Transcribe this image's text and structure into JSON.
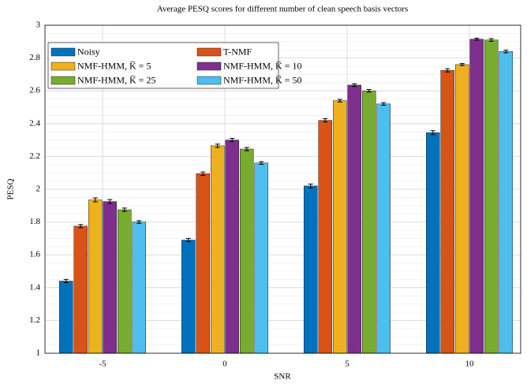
{
  "chart_data": {
    "type": "bar",
    "title": "Average PESQ scores for different number of clean speech basis vectors",
    "x_label": "SNR",
    "y_label": "PESQ",
    "categories": [
      "-5",
      "0",
      "5",
      "10"
    ],
    "series": [
      {
        "name": "Noisy",
        "color": "#0072bd",
        "values": [
          1.44,
          1.69,
          2.02,
          2.345
        ],
        "errors": [
          0.01,
          0.01,
          0.012,
          0.012
        ]
      },
      {
        "name": "T-NMF",
        "color": "#d95319",
        "values": [
          1.775,
          2.095,
          2.42,
          2.725
        ],
        "errors": [
          0.01,
          0.01,
          0.01,
          0.01
        ]
      },
      {
        "name": "NMF-HMM, K̅ = 5",
        "color": "#edb120",
        "values": [
          1.935,
          2.265,
          2.54,
          2.76
        ],
        "errors": [
          0.012,
          0.01,
          0.008,
          0.006
        ]
      },
      {
        "name": "NMF-HMM, K̅ = 10",
        "color": "#7e2f8e",
        "values": [
          1.925,
          2.3,
          2.635,
          2.915
        ],
        "errors": [
          0.012,
          0.01,
          0.008,
          0.006
        ]
      },
      {
        "name": "NMF-HMM, K̅ = 25",
        "color": "#77ac30",
        "values": [
          1.875,
          2.245,
          2.6,
          2.91
        ],
        "errors": [
          0.01,
          0.01,
          0.008,
          0.008
        ]
      },
      {
        "name": "NMF-HMM, K̅ = 50",
        "color": "#4dbeee",
        "values": [
          1.8,
          2.16,
          2.52,
          2.84
        ],
        "errors": [
          0.008,
          0.008,
          0.008,
          0.008
        ]
      }
    ],
    "ylim": [
      1,
      3
    ],
    "yticks": [
      1,
      1.2,
      1.4,
      1.6,
      1.8,
      2,
      2.2,
      2.4,
      2.6,
      2.8,
      3
    ],
    "grid": true,
    "legend": "top-left"
  }
}
